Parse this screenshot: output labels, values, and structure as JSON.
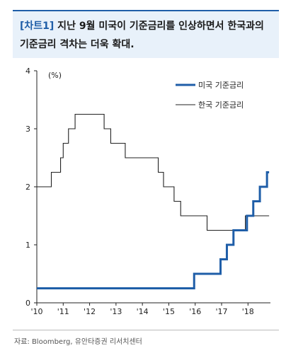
{
  "header": {
    "tag": "[차트1]",
    "title_line1": " 지난 9월 미국이 기준금리를 인상하면서 한국과의",
    "title_line2": "기준금리 격차는 더욱 확대."
  },
  "source": "자료: Bloomberg, 유안타증권 리서치센터",
  "chart_data": {
    "type": "line",
    "title": "[차트1] 지난 9월 미국이 기준금리를 인상하면서 한국과의 기준금리 격차는 더욱 확대.",
    "ylabel": "(%)",
    "xlabel": "",
    "xlim": [
      2010,
      2018.85
    ],
    "ylim": [
      0,
      4
    ],
    "yticks": [
      0,
      1,
      2,
      3,
      4
    ],
    "xticks": [
      2010,
      2011,
      2012,
      2013,
      2014,
      2015,
      2016,
      2017,
      2018
    ],
    "xtick_labels": [
      "'10",
      "'11",
      "'12",
      "'13",
      "'14",
      "'15",
      "'16",
      "'17",
      "'18"
    ],
    "grid": false,
    "legend_position": "top-right",
    "series": [
      {
        "name": "미국 기준금리",
        "color": "#1f5ea8",
        "step": true,
        "x": [
          2010,
          2015.96,
          2016.96,
          2017.2,
          2017.45,
          2017.96,
          2018.2,
          2018.45,
          2018.72,
          2018.8
        ],
        "y": [
          0.25,
          0.5,
          0.75,
          1.0,
          1.25,
          1.5,
          1.75,
          2.0,
          2.25,
          2.25
        ]
      },
      {
        "name": "한국 기준금리",
        "color": "#222222",
        "step": true,
        "x": [
          2010,
          2010.55,
          2010.9,
          2011.0,
          2011.2,
          2011.45,
          2012.55,
          2012.8,
          2013.35,
          2014.6,
          2014.8,
          2015.2,
          2015.45,
          2016.45,
          2017.9,
          2018.8
        ],
        "y": [
          2.0,
          2.25,
          2.5,
          2.75,
          3.0,
          3.25,
          3.0,
          2.75,
          2.5,
          2.25,
          2.0,
          1.75,
          1.5,
          1.25,
          1.5,
          1.5
        ]
      }
    ]
  }
}
